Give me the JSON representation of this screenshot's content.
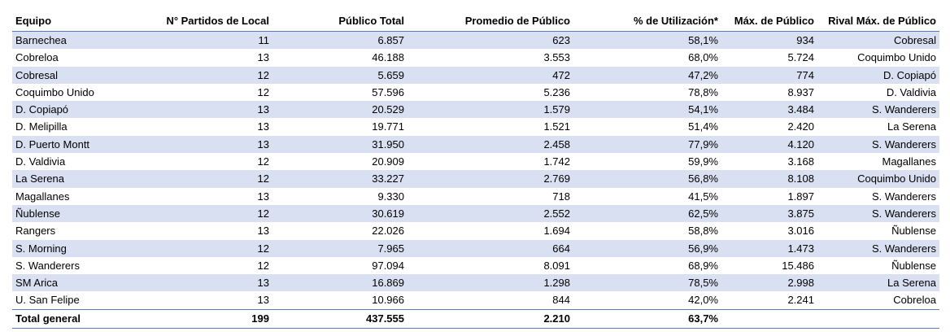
{
  "table": {
    "headers": [
      "Equipo",
      "N° Partidos de Local",
      "Público Total",
      "Promedio de Público",
      "% de Utilización*",
      "Máx. de Público",
      "Rival Máx. de Público"
    ],
    "rows": [
      [
        "Barnechea",
        "11",
        "6.857",
        "623",
        "58,1%",
        "934",
        "Cobresal"
      ],
      [
        "Cobreloa",
        "13",
        "46.188",
        "3.553",
        "68,0%",
        "5.724",
        "Coquimbo Unido"
      ],
      [
        "Cobresal",
        "12",
        "5.659",
        "472",
        "47,2%",
        "774",
        "D. Copiapó"
      ],
      [
        "Coquimbo Unido",
        "12",
        "57.596",
        "5.236",
        "78,8%",
        "8.937",
        "D. Valdivia"
      ],
      [
        "D. Copiapó",
        "13",
        "20.529",
        "1.579",
        "54,1%",
        "3.484",
        "S. Wanderers"
      ],
      [
        "D. Melipilla",
        "13",
        "19.771",
        "1.521",
        "51,4%",
        "2.420",
        "La Serena"
      ],
      [
        "D. Puerto Montt",
        "13",
        "31.950",
        "2.458",
        "77,9%",
        "4.120",
        "S. Wanderers"
      ],
      [
        "D. Valdivia",
        "12",
        "20.909",
        "1.742",
        "59,9%",
        "3.168",
        "Magallanes"
      ],
      [
        "La Serena",
        "12",
        "33.227",
        "2.769",
        "56,8%",
        "8.108",
        "Coquimbo Unido"
      ],
      [
        "Magallanes",
        "13",
        "9.330",
        "718",
        "41,5%",
        "1.897",
        "S. Wanderers"
      ],
      [
        "Ñublense",
        "12",
        "30.619",
        "2.552",
        "62,5%",
        "3.875",
        "S. Wanderers"
      ],
      [
        "Rangers",
        "13",
        "22.026",
        "1.694",
        "58,8%",
        "3.016",
        "Ñublense"
      ],
      [
        "S. Morning",
        "12",
        "7.965",
        "664",
        "56,9%",
        "1.473",
        "S. Wanderers"
      ],
      [
        "S. Wanderers",
        "12",
        "97.094",
        "8.091",
        "68,9%",
        "15.486",
        "Ñublense"
      ],
      [
        "SM Arica",
        "13",
        "16.869",
        "1.298",
        "78,5%",
        "2.998",
        "La Serena"
      ],
      [
        "U. San Felipe",
        "13",
        "10.966",
        "844",
        "42,0%",
        "2.241",
        "Cobreloa"
      ]
    ],
    "total": [
      "Total general",
      "199",
      "437.555",
      "2.210",
      "63,7%",
      "",
      ""
    ],
    "colors": {
      "band": "#d9e0f1",
      "rule": "#5b7bb4"
    }
  }
}
